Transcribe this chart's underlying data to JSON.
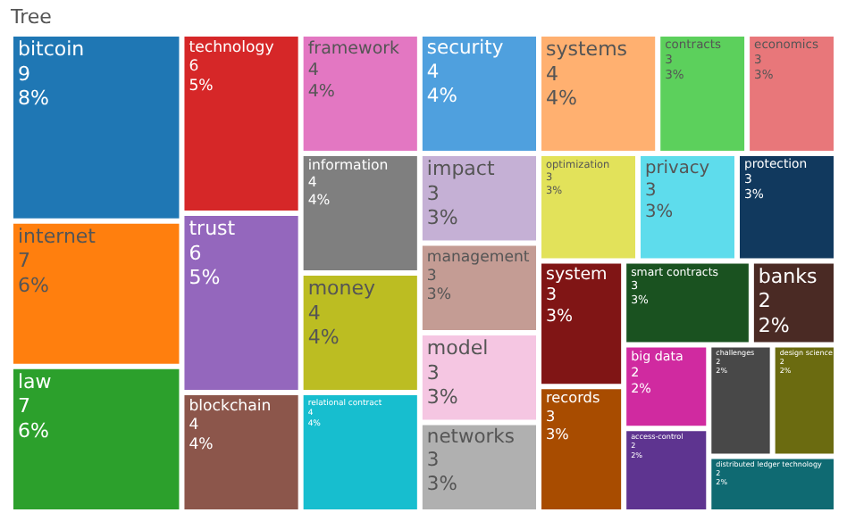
{
  "chart_data": {
    "type": "other",
    "title": "Tree",
    "data_labels": true,
    "categories": [
      "bitcoin",
      "internet",
      "law",
      "technology",
      "trust",
      "blockchain",
      "framework",
      "information",
      "money",
      "relational contract",
      "security",
      "systems",
      "contracts",
      "economics",
      "impact",
      "management",
      "model",
      "networks",
      "optimization",
      "privacy",
      "protection",
      "system",
      "records",
      "smart contracts",
      "banks",
      "big data",
      "access-control",
      "challenges",
      "design science",
      "distributed ledger technology"
    ],
    "values": [
      9,
      7,
      7,
      6,
      6,
      4,
      4,
      4,
      4,
      4,
      4,
      4,
      3,
      3,
      3,
      3,
      3,
      3,
      3,
      3,
      3,
      3,
      3,
      3,
      2,
      2,
      2,
      2,
      2,
      2
    ],
    "annotations": [
      {
        "text": "8%",
        "x": "bitcoin"
      },
      {
        "text": "6%",
        "x": "internet"
      },
      {
        "text": "6%",
        "x": "law"
      },
      {
        "text": "5%",
        "x": "technology"
      },
      {
        "text": "5%",
        "x": "trust"
      },
      {
        "text": "4%",
        "x": "blockchain"
      },
      {
        "text": "4%",
        "x": "framework"
      },
      {
        "text": "4%",
        "x": "information"
      },
      {
        "text": "4%",
        "x": "money"
      },
      {
        "text": "4%",
        "x": "relational contract"
      },
      {
        "text": "4%",
        "x": "security"
      },
      {
        "text": "4%",
        "x": "systems"
      },
      {
        "text": "3%",
        "x": "contracts"
      },
      {
        "text": "3%",
        "x": "economics"
      },
      {
        "text": "3%",
        "x": "impact"
      },
      {
        "text": "3%",
        "x": "management"
      },
      {
        "text": "3%",
        "x": "model"
      },
      {
        "text": "3%",
        "x": "networks"
      },
      {
        "text": "3%",
        "x": "optimization"
      },
      {
        "text": "3%",
        "x": "privacy"
      },
      {
        "text": "3%",
        "x": "protection"
      },
      {
        "text": "3%",
        "x": "system"
      },
      {
        "text": "3%",
        "x": "records"
      },
      {
        "text": "3%",
        "x": "smart contracts"
      },
      {
        "text": "2%",
        "x": "banks"
      },
      {
        "text": "2%",
        "x": "big data"
      },
      {
        "text": "2%",
        "x": "access-control"
      },
      {
        "text": "2%",
        "x": "challenges"
      },
      {
        "text": "2%",
        "x": "design science"
      },
      {
        "text": "2%",
        "x": "distributed ledger technology"
      }
    ],
    "colors": [
      "#1f77b4",
      "#ff7f0e",
      "#2ca02c",
      "#d62728",
      "#9467bd",
      "#8c564b",
      "#e377c2",
      "#7f7f7f",
      "#bcbd22",
      "#17becf",
      "#4fa0de",
      "#ffb070",
      "#5cd05c",
      "#e8777a",
      "#c5b0d5",
      "#c49c94",
      "#f5c6e2",
      "#b0b0b0",
      "#e2e25a",
      "#5edcec",
      "#11395e",
      "#801515",
      "#a84c00",
      "#1a5220",
      "#4a2a24",
      "#d02aa0",
      "#5e3490",
      "#484848",
      "#6b6b10",
      "#0f6a72"
    ]
  }
}
